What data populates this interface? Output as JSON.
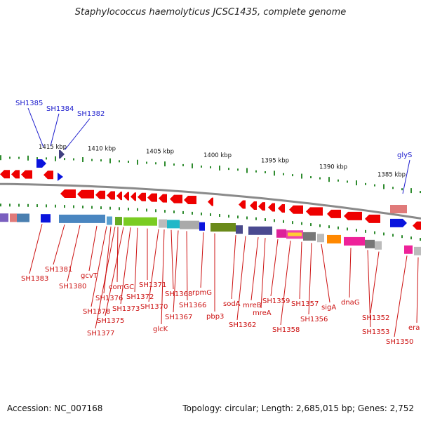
{
  "title": "Staphylococcus haemolyticus JCSC1435, complete genome",
  "footer": {
    "accession": "Accession: NC_007168",
    "topology": "Topology: circular; Length: 2,685,015 bp; Genes: 2,752"
  },
  "scale_labels": [
    "1415 kbp",
    "1410 kbp",
    "1405 kbp",
    "1400 kbp",
    "1395 kbp",
    "1390 kbp",
    "1385 kbp"
  ],
  "top_gene_labels": [
    "SH1385",
    "SH1384",
    "SH1382",
    "glyS"
  ],
  "bottom_gene_labels": [
    "SH1383",
    "SH1381",
    "SH1380",
    "gcvT",
    "SH1378",
    "SH1377",
    "SH1376",
    "comGC",
    "SH1375",
    "SH1373",
    "SH1372",
    "SH1371",
    "SH1370",
    "glcK",
    "SH1368",
    "SH1367",
    "SH1366",
    "rpmG",
    "pbp3",
    "sodA",
    "SH1362",
    "mreB",
    "mreA",
    "SH1359",
    "SH1358",
    "SH1357",
    "SH1356",
    "sigA",
    "dnaG",
    "SH1353",
    "SH1352",
    "SH1350",
    "era"
  ],
  "colors": {
    "backbone": "#8a8a8a",
    "gene_red": "#ee0000",
    "gene_blue": "#0a14dd",
    "label_red": "#cc1111",
    "label_blue": "#1a1acc",
    "tick_green": "#2e8b2e"
  }
}
